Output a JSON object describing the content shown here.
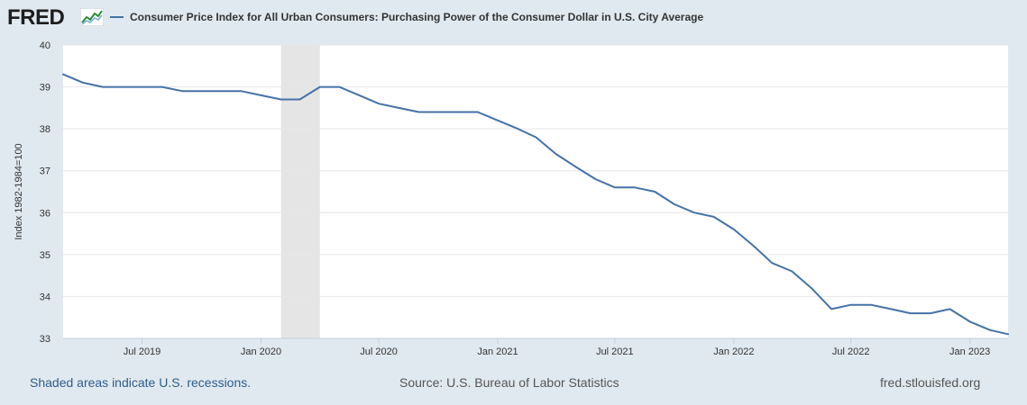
{
  "header": {
    "logo_text": "FRED",
    "series_title": "Consumer Price Index for All Urban Consumers: Purchasing Power of the Consumer Dollar in U.S. City Average"
  },
  "footer": {
    "recession_note": "Shaded areas indicate U.S. recessions.",
    "source": "Source: U.S. Bureau of Labor Statistics",
    "site": "fred.stlouisfed.org"
  },
  "colors": {
    "line": "#4572a7",
    "recession_shade": "#e5e5e5",
    "background": "#e1e9f0",
    "plot_background": "#ffffff",
    "grid": "#e6e6e6"
  },
  "chart_data": {
    "type": "line",
    "ylabel": "Index 1982-1984=100",
    "ylim": [
      33,
      40
    ],
    "yticks": [
      33,
      34,
      35,
      36,
      37,
      38,
      39,
      40
    ],
    "xlim": [
      "2019-03-01",
      "2023-03-01"
    ],
    "xticks": [
      {
        "date": "2019-07-01",
        "label": "Jul 2019"
      },
      {
        "date": "2020-01-01",
        "label": "Jan 2020"
      },
      {
        "date": "2020-07-01",
        "label": "Jul 2020"
      },
      {
        "date": "2021-01-01",
        "label": "Jan 2021"
      },
      {
        "date": "2021-07-01",
        "label": "Jul 2021"
      },
      {
        "date": "2022-01-01",
        "label": "Jan 2022"
      },
      {
        "date": "2022-07-01",
        "label": "Jul 2022"
      },
      {
        "date": "2023-01-01",
        "label": "Jan 2023"
      }
    ],
    "recessions": [
      {
        "start": "2020-02-01",
        "end": "2020-04-01"
      }
    ],
    "grid": true,
    "legend": "top-left",
    "series": [
      {
        "name": "Consumer Price Index for All Urban Consumers: Purchasing Power of the Consumer Dollar in U.S. City Average",
        "x": [
          "2019-03-01",
          "2019-04-01",
          "2019-05-01",
          "2019-06-01",
          "2019-07-01",
          "2019-08-01",
          "2019-09-01",
          "2019-10-01",
          "2019-11-01",
          "2019-12-01",
          "2020-01-01",
          "2020-02-01",
          "2020-03-01",
          "2020-04-01",
          "2020-05-01",
          "2020-06-01",
          "2020-07-01",
          "2020-08-01",
          "2020-09-01",
          "2020-10-01",
          "2020-11-01",
          "2020-12-01",
          "2021-01-01",
          "2021-02-01",
          "2021-03-01",
          "2021-04-01",
          "2021-05-01",
          "2021-06-01",
          "2021-07-01",
          "2021-08-01",
          "2021-09-01",
          "2021-10-01",
          "2021-11-01",
          "2021-12-01",
          "2022-01-01",
          "2022-02-01",
          "2022-03-01",
          "2022-04-01",
          "2022-05-01",
          "2022-06-01",
          "2022-07-01",
          "2022-08-01",
          "2022-09-01",
          "2022-10-01",
          "2022-11-01",
          "2022-12-01",
          "2023-01-01",
          "2023-02-01",
          "2023-03-01"
        ],
        "values": [
          39.3,
          39.1,
          39.0,
          39.0,
          39.0,
          39.0,
          38.9,
          38.9,
          38.9,
          38.9,
          38.8,
          38.7,
          38.7,
          39.0,
          39.0,
          38.8,
          38.6,
          38.5,
          38.4,
          38.4,
          38.4,
          38.4,
          38.2,
          38.0,
          37.8,
          37.4,
          37.1,
          36.8,
          36.6,
          36.6,
          36.5,
          36.2,
          36.0,
          35.9,
          35.6,
          35.2,
          34.8,
          34.6,
          34.2,
          33.7,
          33.8,
          33.8,
          33.7,
          33.6,
          33.6,
          33.7,
          33.4,
          33.2,
          33.1
        ]
      }
    ]
  }
}
